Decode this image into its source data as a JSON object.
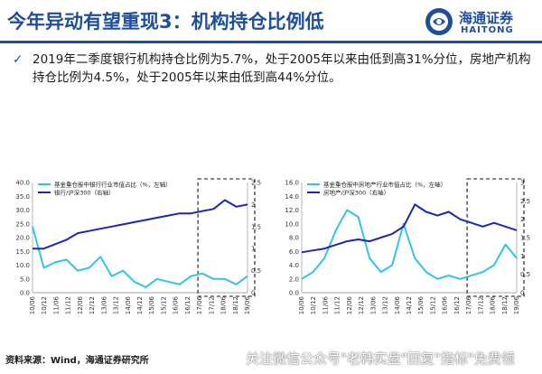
{
  "header": {
    "title": "今年异动有望重现3：机构持仓比例低",
    "logo_cn": "海通证券",
    "logo_en": "HAITONG"
  },
  "summary": {
    "text": "2019年二季度银行机构持仓比例为5.7%，处于2005年以来由低到高31%分位，房地产机构持仓比例为4.5%，处于2005年以来由低到高44%分位。"
  },
  "footer": {
    "source": "资料来源：Wind，海通证券研究所",
    "watermark": "关注微信公众号\"老韩实盘\"回复\"指标\"免费领"
  },
  "colors": {
    "brand": "#1f4e9a",
    "series_cyan": "#33c3e6",
    "series_navy": "#1a28b0"
  },
  "chart_data": [
    {
      "type": "line",
      "x_ticks": [
        "10/06",
        "10/12",
        "11/06",
        "11/12",
        "12/06",
        "12/12",
        "13/06",
        "13/12",
        "14/06",
        "14/12",
        "15/06",
        "15/12",
        "16/06",
        "16/12",
        "17/06",
        "17/12",
        "18/06",
        "18/12",
        "19/06"
      ],
      "y_left_ticks": [
        "0.0",
        "5.0",
        "10.0",
        "15.0",
        "20.0",
        "25.0",
        "30.0",
        "35.0",
        "40.0"
      ],
      "y_right_ticks": [
        "0",
        "0.5",
        "1",
        "1.5",
        "2",
        "2.5"
      ],
      "ylim_left": [
        0,
        40
      ],
      "ylim_right": [
        0,
        2.5
      ],
      "highlight_from": 14,
      "highlight_to": 18,
      "series": [
        {
          "name": "基金重仓股中银行行业市值占比（%，左轴）",
          "axis": "left",
          "color": "#33c3e6",
          "values": [
            24,
            9,
            11,
            12,
            8,
            9,
            13,
            6,
            8,
            4,
            2,
            5,
            4,
            3,
            6,
            7,
            5,
            5,
            3,
            6
          ]
        },
        {
          "name": "银行/沪深300（右轴）",
          "axis": "right",
          "color": "#1a28b0",
          "values": [
            1.0,
            1.0,
            1.1,
            1.2,
            1.35,
            1.4,
            1.45,
            1.5,
            1.55,
            1.6,
            1.65,
            1.7,
            1.75,
            1.8,
            1.8,
            1.85,
            1.9,
            2.1,
            1.95,
            2.0
          ]
        }
      ]
    },
    {
      "type": "line",
      "x_ticks": [
        "10/06",
        "10/12",
        "11/06",
        "11/12",
        "12/06",
        "12/12",
        "13/06",
        "13/12",
        "14/06",
        "14/12",
        "15/06",
        "15/12",
        "16/06",
        "16/12",
        "17/06",
        "17/12",
        "18/06",
        "18/12",
        "19/06"
      ],
      "y_left_ticks": [
        "0.0",
        "2.0",
        "4.0",
        "6.0",
        "8.0",
        "10.0",
        "12.0",
        "14.0",
        "16.0"
      ],
      "y_right_ticks": [
        "0",
        "0.5",
        "1",
        "1.5",
        "2",
        "2.5",
        "3"
      ],
      "ylim_left": [
        0,
        16
      ],
      "ylim_right": [
        0,
        3
      ],
      "highlight_from": 14,
      "highlight_to": 18,
      "series": [
        {
          "name": "基金重仓股中房地产行业市值占比（%，左轴）",
          "axis": "left",
          "color": "#33c3e6",
          "values": [
            2,
            3,
            5,
            9,
            12,
            11,
            5,
            3,
            4,
            10,
            5,
            3,
            2,
            2.5,
            2,
            2.5,
            3,
            4,
            7,
            5
          ]
        },
        {
          "name": "房地产/沪深300（右轴）",
          "axis": "right",
          "color": "#1a28b0",
          "values": [
            1.1,
            1.15,
            1.2,
            1.3,
            1.4,
            1.45,
            1.4,
            1.5,
            1.6,
            1.8,
            2.4,
            2.2,
            2.1,
            2.2,
            2.0,
            1.9,
            1.8,
            1.9,
            1.8,
            1.7
          ]
        }
      ]
    }
  ]
}
